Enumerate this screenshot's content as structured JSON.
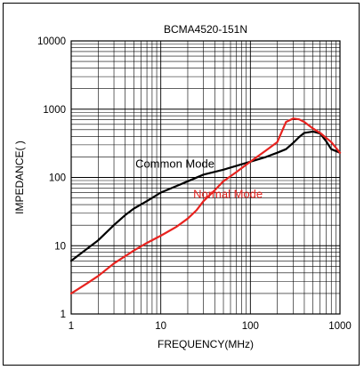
{
  "chart_data": {
    "type": "line",
    "title": "BCMA4520-151N",
    "xlabel": "FREQUENCY(MHz)",
    "ylabel": "IMPEDANCE(  )",
    "x_scale": "log",
    "y_scale": "log",
    "xlim": [
      1,
      1000
    ],
    "ylim": [
      1,
      10000
    ],
    "x_ticks": [
      "1",
      "10",
      "100",
      "1000"
    ],
    "y_ticks": [
      "1",
      "10",
      "100",
      "1000",
      "10000"
    ],
    "grid": true,
    "legend": "inline labels",
    "colors": {
      "common": "#000000",
      "normal": "#e8231f"
    },
    "series": [
      {
        "name": "Common Mode",
        "color": "#000000",
        "x": [
          1,
          1.5,
          2,
          3,
          4,
          5,
          7,
          10,
          15,
          20,
          30,
          50,
          70,
          100,
          150,
          200,
          250,
          300,
          350,
          400,
          500,
          600,
          700,
          800,
          1000
        ],
        "y": [
          6,
          9,
          12,
          20,
          28,
          35,
          45,
          60,
          75,
          88,
          110,
          130,
          148,
          170,
          200,
          230,
          260,
          320,
          390,
          450,
          470,
          440,
          340,
          260,
          230
        ]
      },
      {
        "name": "Normal Mode",
        "color": "#e8231f",
        "x": [
          1,
          1.5,
          2,
          3,
          4,
          5,
          7,
          10,
          15,
          20,
          25,
          30,
          40,
          50,
          70,
          100,
          150,
          200,
          250,
          300,
          350,
          400,
          500,
          600,
          700,
          800,
          1000
        ],
        "y": [
          2,
          2.8,
          3.6,
          5.5,
          7,
          8.5,
          11,
          14,
          19,
          25,
          33,
          45,
          65,
          88,
          120,
          170,
          250,
          330,
          650,
          730,
          710,
          650,
          520,
          450,
          380,
          330,
          230
        ]
      }
    ],
    "annotations": [
      {
        "text": "Common Mode",
        "color": "#000000",
        "x": 5.2,
        "y": 140
      },
      {
        "text": "Normal Mode",
        "color": "#e8231f",
        "x": 23,
        "y": 50
      }
    ]
  }
}
